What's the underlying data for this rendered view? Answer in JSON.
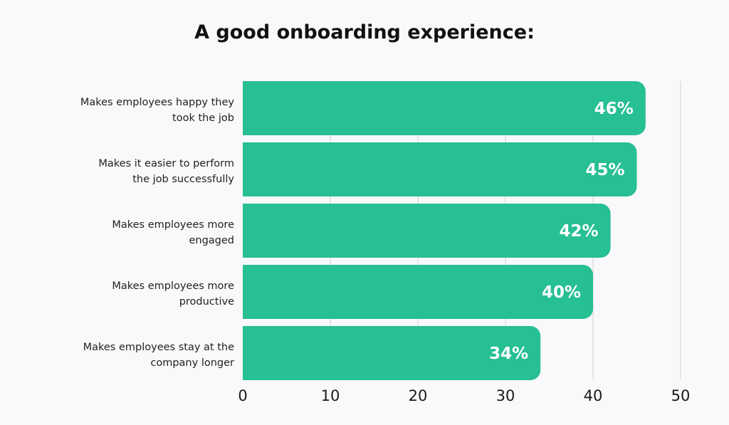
{
  "chart_data": {
    "type": "bar",
    "orientation": "horizontal",
    "title": "A good onboarding experience:",
    "categories": [
      [
        "Makes employees happy they",
        "took the job"
      ],
      [
        "Makes it easier to perform",
        "the job successfully"
      ],
      [
        "Makes employees more",
        "engaged"
      ],
      [
        "Makes employees more",
        "productive"
      ],
      [
        "Makes employees stay at the",
        "company longer"
      ]
    ],
    "values": [
      46,
      45,
      42,
      40,
      34
    ],
    "data_labels": [
      "46%",
      "45%",
      "42%",
      "40%",
      "34%"
    ],
    "xlim": [
      0,
      50
    ],
    "xticks": [
      "0",
      "10",
      "20",
      "30",
      "40",
      "50"
    ],
    "xlabel": "",
    "ylabel": "",
    "grid": "vertical",
    "bar_color": "#27bf94"
  }
}
